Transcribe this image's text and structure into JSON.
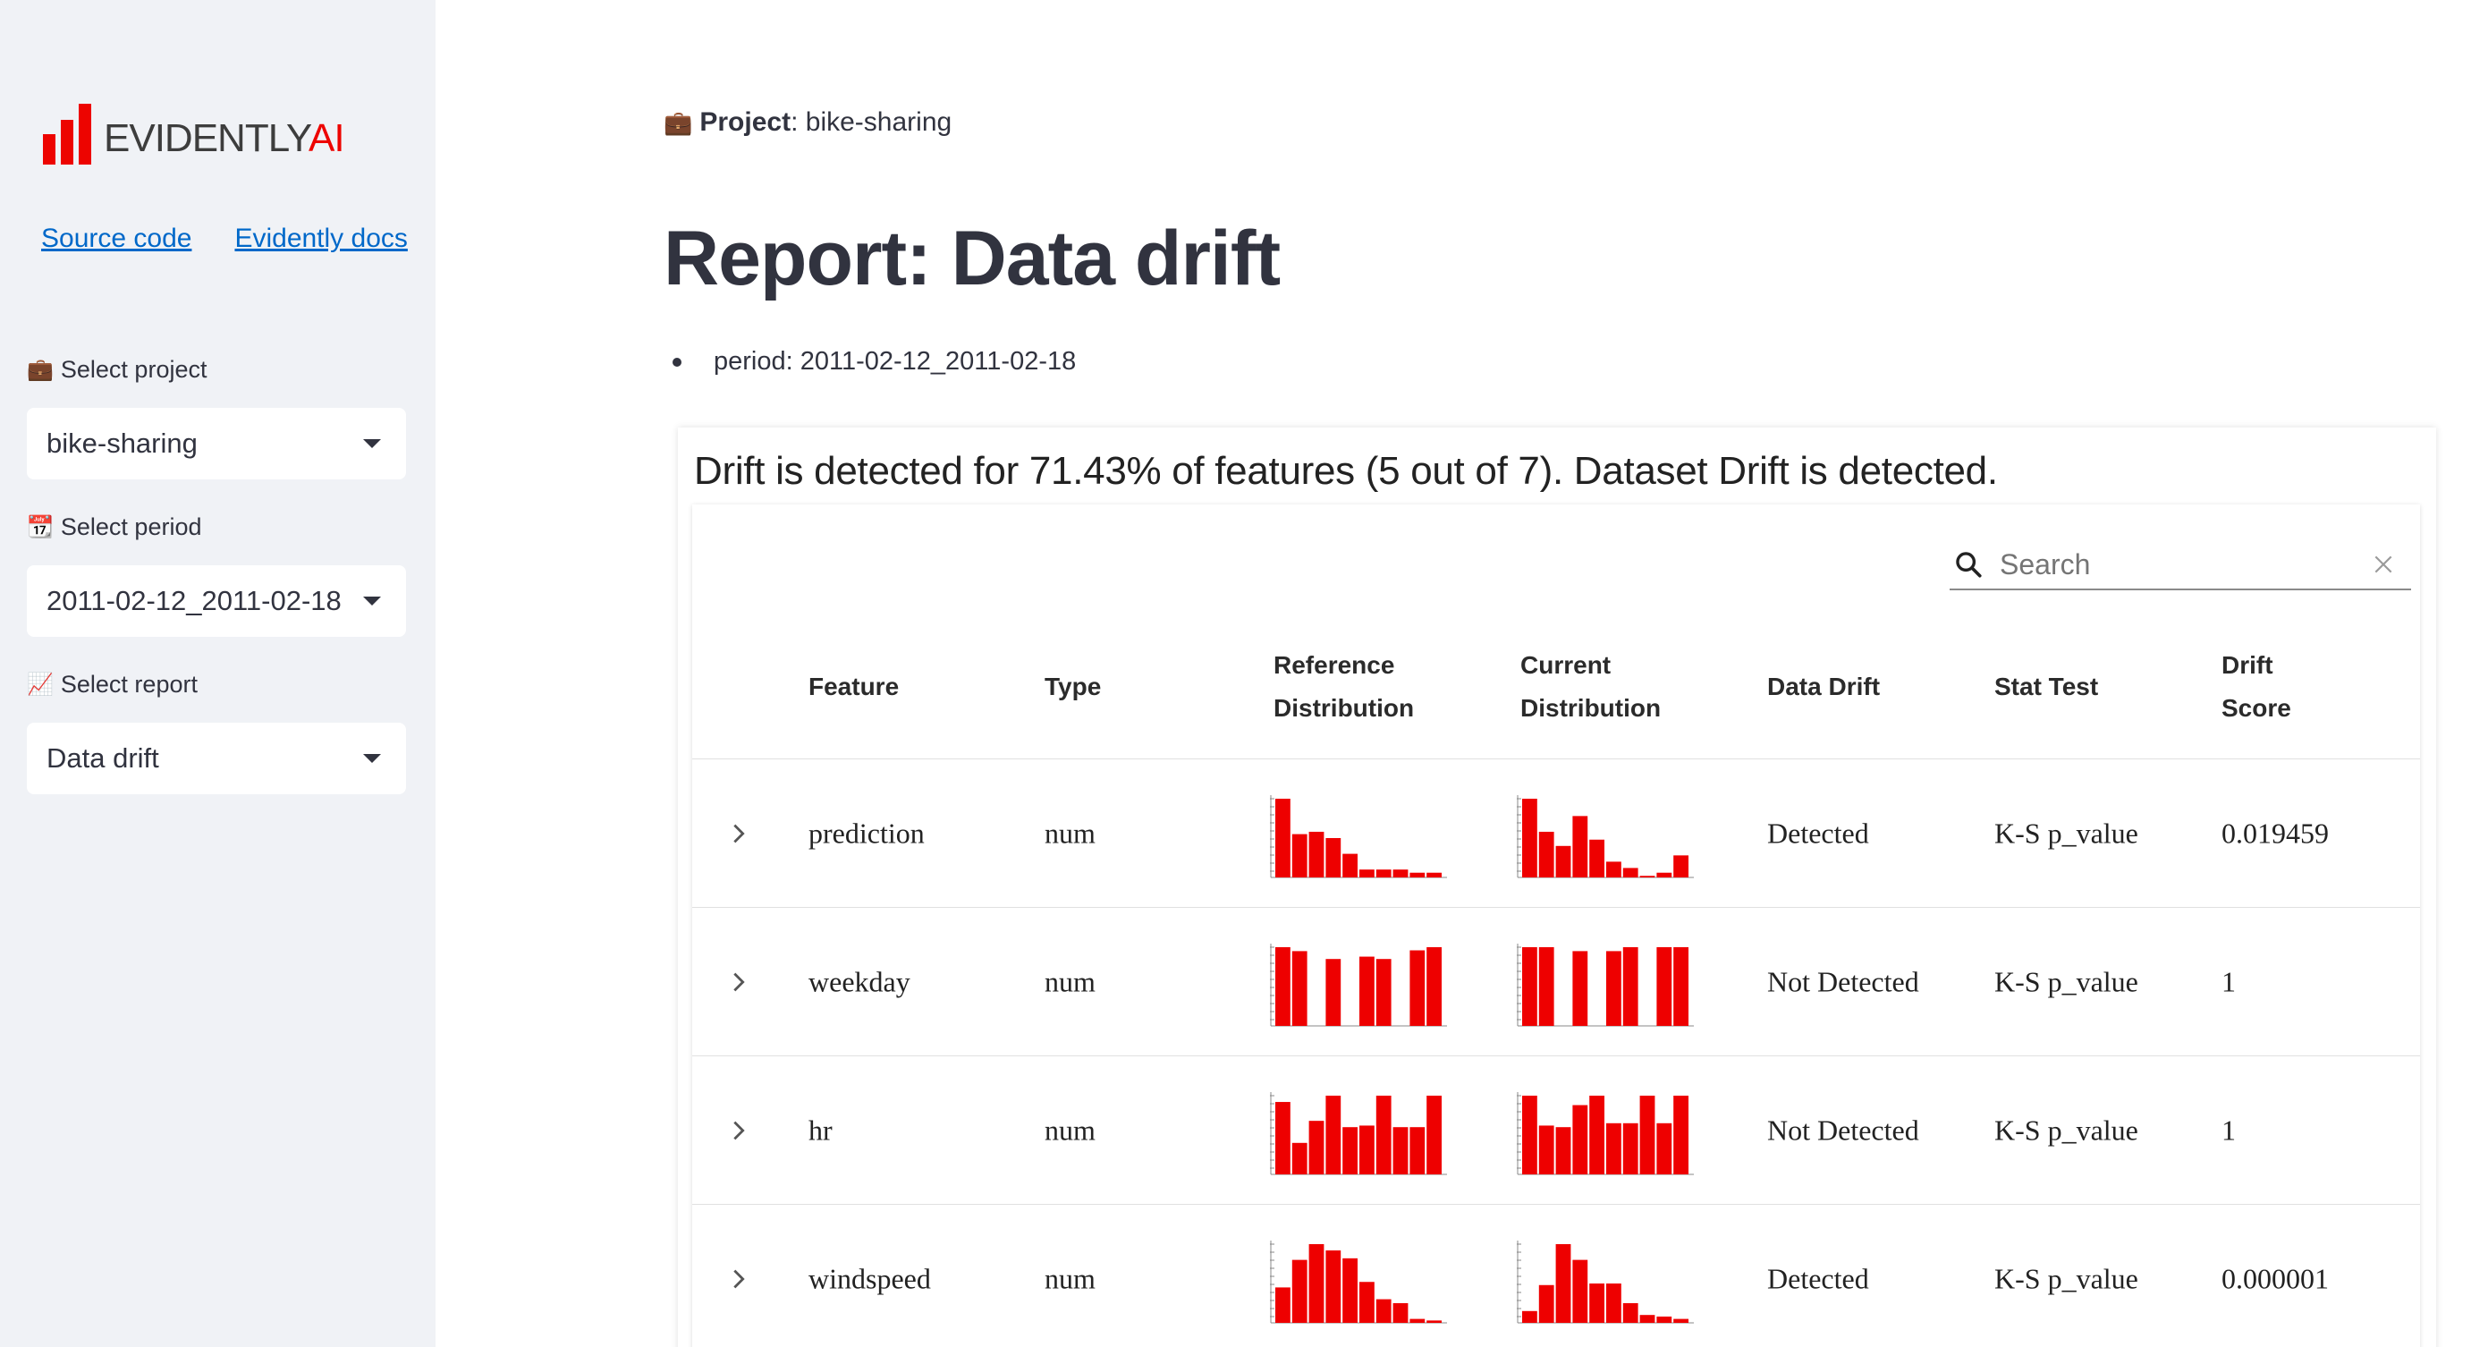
{
  "sidebar": {
    "logo": {
      "word": "EVIDENTLY",
      "accent": "AI"
    },
    "links": {
      "source": "Source code",
      "docs": "Evidently docs"
    },
    "project_label": "Select project",
    "project_value": "bike-sharing",
    "period_label": "Select period",
    "period_value": "2011-02-12_2011-02-18",
    "report_label": "Select report",
    "report_value": "Data drift"
  },
  "main": {
    "project_key": "Project",
    "project_sep": ": ",
    "project_value": "bike-sharing",
    "title": "Report: Data drift",
    "period_text": "period: 2011-02-12_2011-02-18"
  },
  "report": {
    "headline": "Drift is detected for 71.43% of features (5 out of 7). Dataset Drift is detected.",
    "search_placeholder": "Search",
    "columns": {
      "feature": "Feature",
      "type": "Type",
      "ref_1": "Reference",
      "ref_2": "Distribution",
      "cur_1": "Current",
      "cur_2": "Distribution",
      "drift": "Data Drift",
      "stat": "Stat Test",
      "score_1": "Drift",
      "score_2": "Score"
    },
    "rows": [
      {
        "feature": "prediction",
        "type": "num",
        "drift": "Detected",
        "stat": "K-S p_value",
        "score": "0.019459",
        "ref_hist": [
          100,
          55,
          58,
          50,
          30,
          10,
          10,
          10,
          6,
          6
        ],
        "cur_hist": [
          100,
          58,
          40,
          78,
          48,
          20,
          12,
          2,
          6,
          28
        ]
      },
      {
        "feature": "weekday",
        "type": "num",
        "drift": "Not Detected",
        "stat": "K-S p_value",
        "score": "1",
        "ref_hist": [
          100,
          95,
          0,
          85,
          0,
          88,
          85,
          0,
          96,
          100
        ],
        "cur_hist": [
          100,
          100,
          0,
          95,
          0,
          95,
          100,
          0,
          100,
          100
        ]
      },
      {
        "feature": "hr",
        "type": "num",
        "drift": "Not Detected",
        "stat": "K-S p_value",
        "score": "1",
        "ref_hist": [
          92,
          40,
          68,
          100,
          60,
          62,
          100,
          60,
          60,
          100
        ],
        "cur_hist": [
          100,
          62,
          60,
          88,
          100,
          65,
          65,
          100,
          65,
          100
        ]
      },
      {
        "feature": "windspeed",
        "type": "num",
        "drift": "Detected",
        "stat": "K-S p_value",
        "score": "0.000001",
        "ref_hist": [
          45,
          80,
          100,
          92,
          82,
          52,
          30,
          25,
          5,
          3
        ],
        "cur_hist": [
          15,
          48,
          100,
          80,
          50,
          50,
          25,
          10,
          8,
          5
        ]
      }
    ]
  },
  "colors": {
    "accent": "#ed0400",
    "link": "#0068c9",
    "sidebar_bg": "#f0f2f6",
    "bar": "#ee0000"
  },
  "icons": [
    "briefcase-icon",
    "calendar-icon",
    "chart-icon",
    "search-icon",
    "close-icon",
    "chevron-right-icon",
    "caret-down-icon"
  ]
}
